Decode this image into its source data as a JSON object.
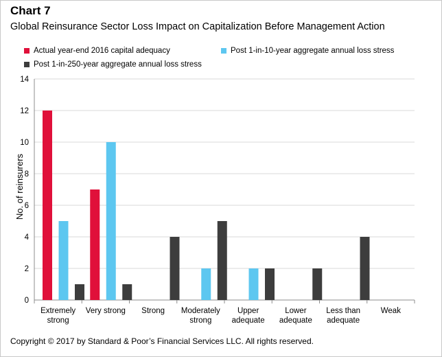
{
  "header": {
    "label": "Chart 7",
    "title": "Global Reinsurance Sector Loss Impact on Capitalization Before Management Action"
  },
  "footer": {
    "copyright": "Copyright © 2017 by Standard & Poor’s Financial Services LLC. All rights reserved."
  },
  "chart_data": {
    "type": "bar",
    "title": "Global Reinsurance Sector Loss Impact on Capitalization Before Management Action",
    "xlabel": "",
    "ylabel": "No. of reinsurers",
    "ylim": [
      0,
      14
    ],
    "yticks": [
      0,
      2,
      4,
      6,
      8,
      10,
      12,
      14
    ],
    "grid": true,
    "legend_position": "top",
    "categories": [
      [
        "Extremely",
        "strong"
      ],
      [
        "Very strong"
      ],
      [
        "Strong"
      ],
      [
        "Moderately",
        "strong"
      ],
      [
        "Upper",
        "adequate"
      ],
      [
        "Lower",
        "adequate"
      ],
      [
        "Less than",
        "adequate"
      ],
      [
        "Weak"
      ]
    ],
    "series": [
      {
        "name": "Actual year-end 2016 capital adequacy",
        "color": "#e0103a",
        "values": [
          12,
          7,
          0,
          0,
          0,
          0,
          0,
          0
        ]
      },
      {
        "name": "Post 1-in-10-year aggregate annual loss stress",
        "color": "#5dc7f0",
        "values": [
          5,
          10,
          0,
          2,
          2,
          0,
          0,
          0
        ]
      },
      {
        "name": "Post 1-in-250-year aggregate annual loss stress",
        "color": "#3d3d3d",
        "values": [
          1,
          1,
          4,
          5,
          2,
          2,
          4,
          0
        ]
      }
    ]
  }
}
